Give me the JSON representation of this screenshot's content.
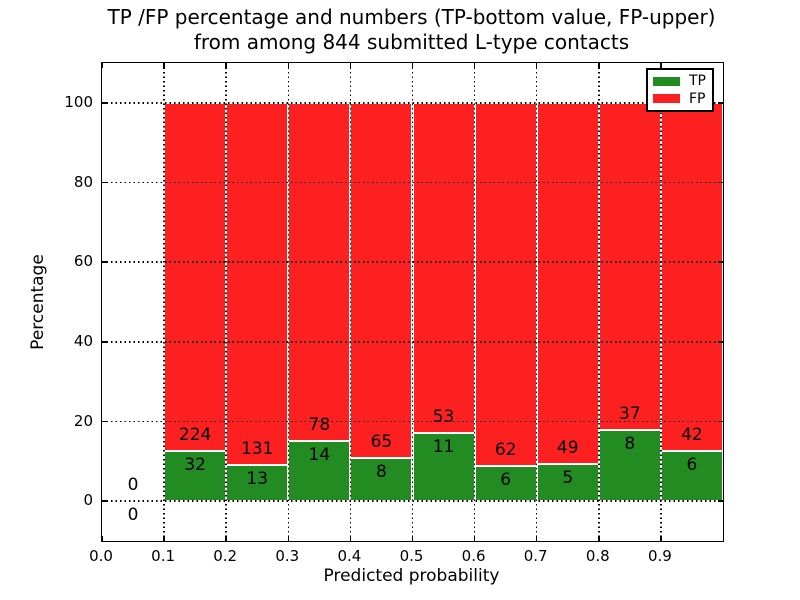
{
  "title_line1": "TP /FP percentage and numbers (TP-bottom value, FP-upper)",
  "title_line2": "from among 844 submitted L-type contacts",
  "chart_data": {
    "type": "bar",
    "stacked": true,
    "normalized": "each bin stacked to 100%",
    "title": "TP /FP percentage and numbers (TP-bottom value, FP-upper) from among 844 submitted L-type contacts",
    "xlabel": "Predicted probability",
    "ylabel": "Percentage",
    "xlim": [
      0.0,
      1.0
    ],
    "ylim": [
      -10,
      110
    ],
    "xticks": [
      "0.0",
      "0.1",
      "0.2",
      "0.3",
      "0.4",
      "0.5",
      "0.6",
      "0.7",
      "0.8",
      "0.9"
    ],
    "yticks": [
      0,
      20,
      40,
      60,
      80,
      100
    ],
    "grid": "dotted",
    "legend": {
      "position": "upper right",
      "entries": [
        {
          "label": "TP",
          "color": "#228b22"
        },
        {
          "label": "FP",
          "color": "#fd2020"
        }
      ]
    },
    "bins": [
      {
        "x_start": 0.0,
        "x_end": 0.1,
        "tp": 0,
        "fp": 0
      },
      {
        "x_start": 0.1,
        "x_end": 0.2,
        "tp": 32,
        "fp": 224
      },
      {
        "x_start": 0.2,
        "x_end": 0.3,
        "tp": 13,
        "fp": 131
      },
      {
        "x_start": 0.3,
        "x_end": 0.4,
        "tp": 14,
        "fp": 78
      },
      {
        "x_start": 0.4,
        "x_end": 0.5,
        "tp": 8,
        "fp": 65
      },
      {
        "x_start": 0.5,
        "x_end": 0.6,
        "tp": 11,
        "fp": 53
      },
      {
        "x_start": 0.6,
        "x_end": 0.7,
        "tp": 6,
        "fp": 62
      },
      {
        "x_start": 0.7,
        "x_end": 0.8,
        "tp": 5,
        "fp": 49
      },
      {
        "x_start": 0.8,
        "x_end": 0.9,
        "tp": 8,
        "fp": 37
      },
      {
        "x_start": 0.9,
        "x_end": 1.0,
        "tp": 6,
        "fp": 42
      }
    ]
  },
  "colors": {
    "tp_green": "#228b22",
    "fp_red": "#fd2020",
    "text": "#000000",
    "background": "#ffffff",
    "grid": "#000000"
  }
}
